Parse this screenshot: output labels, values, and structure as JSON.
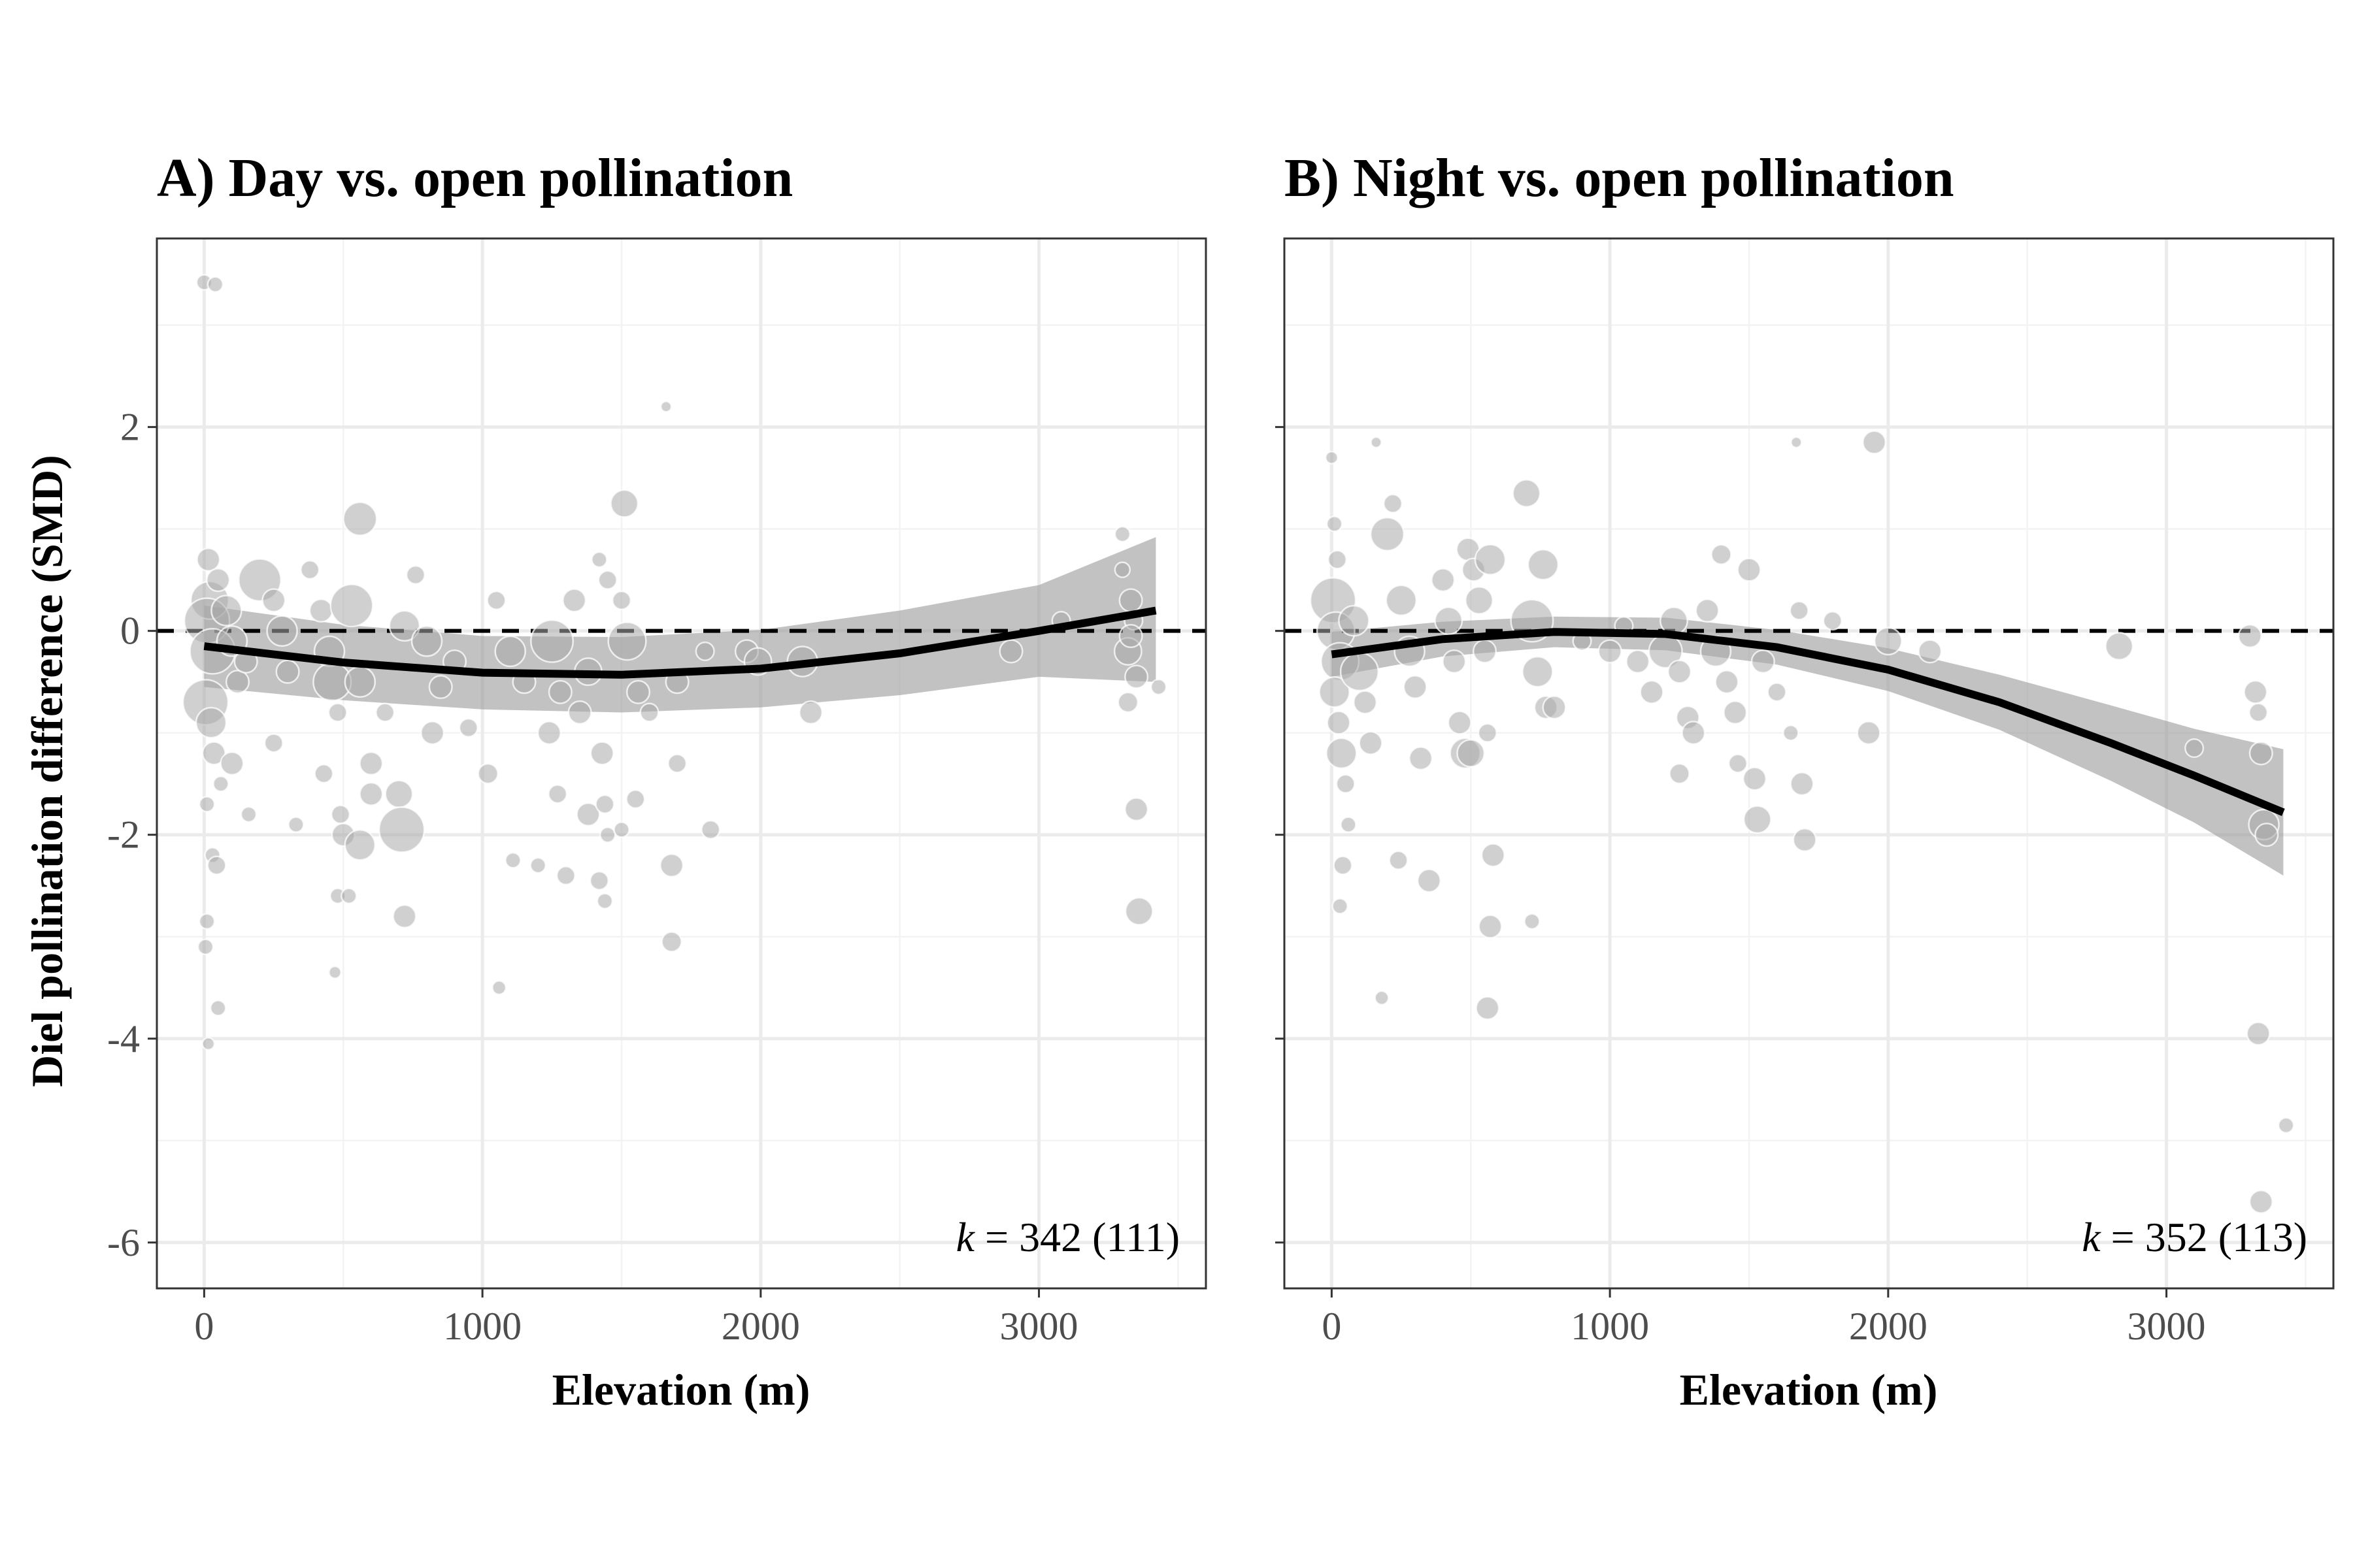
{
  "figure": {
    "y_axis_title": "Diel pollination difference (SMD)",
    "colors": {
      "point": "#aaaaaa",
      "ribbon": "#999999",
      "line": "#000000",
      "grid": "#ebebeb",
      "frame": "#333333"
    }
  },
  "chart_data": [
    {
      "type": "scatter",
      "title": "A) Day vs. open pollination",
      "xlabel": "Elevation (m)",
      "ylabel": "Diel pollination difference (SMD)",
      "xlim": [
        -170,
        3600
      ],
      "ylim": [
        -6.45,
        3.85
      ],
      "x_ticks": [
        0,
        1000,
        2000,
        3000
      ],
      "x_tick_labels": [
        "0",
        "1000",
        "2000",
        "3000"
      ],
      "y_ticks": [
        -6,
        -4,
        -2,
        0,
        2
      ],
      "y_tick_labels": [
        "-6",
        "-4",
        "-2",
        "0",
        "2"
      ],
      "grid": true,
      "reference_line_y": 0,
      "annotation": {
        "k_symbol": "k",
        "text": " = 342 (111)"
      },
      "fit": {
        "x": [
          0,
          500,
          1000,
          1500,
          2000,
          2500,
          3000,
          3420
        ],
        "y": [
          -0.15,
          -0.31,
          -0.41,
          -0.43,
          -0.37,
          -0.22,
          0.0,
          0.2
        ]
      },
      "ribbon": {
        "x": [
          0,
          500,
          1000,
          1500,
          2000,
          2500,
          3000,
          3420
        ],
        "lower": [
          -0.55,
          -0.68,
          -0.77,
          -0.8,
          -0.75,
          -0.63,
          -0.45,
          -0.5
        ],
        "upper": [
          0.25,
          0.06,
          -0.05,
          -0.06,
          0.01,
          0.2,
          0.45,
          0.92
        ]
      },
      "points": [
        [
          0,
          3.42,
          1.0
        ],
        [
          40,
          3.4,
          1.0
        ],
        [
          20,
          0.3,
          2.5
        ],
        [
          10,
          0.1,
          3.0
        ],
        [
          30,
          -0.2,
          3.0
        ],
        [
          5,
          -0.7,
          3.0
        ],
        [
          25,
          -0.9,
          2.0
        ],
        [
          15,
          0.7,
          1.5
        ],
        [
          50,
          0.5,
          1.5
        ],
        [
          35,
          -1.2,
          1.5
        ],
        [
          60,
          -1.5,
          1.0
        ],
        [
          10,
          -1.7,
          1.0
        ],
        [
          30,
          -2.2,
          1.0
        ],
        [
          45,
          -2.3,
          1.2
        ],
        [
          10,
          -2.85,
          1.0
        ],
        [
          5,
          -3.1,
          1.0
        ],
        [
          50,
          -3.7,
          1.0
        ],
        [
          15,
          -4.05,
          0.8
        ],
        [
          80,
          0.2,
          2.0
        ],
        [
          100,
          -0.1,
          2.0
        ],
        [
          120,
          -0.5,
          1.5
        ],
        [
          150,
          -0.3,
          1.5
        ],
        [
          100,
          -1.3,
          1.5
        ],
        [
          160,
          -1.8,
          1.0
        ],
        [
          200,
          0.5,
          2.8
        ],
        [
          250,
          0.3,
          1.5
        ],
        [
          280,
          0.0,
          2.0
        ],
        [
          300,
          -0.4,
          1.5
        ],
        [
          250,
          -1.1,
          1.2
        ],
        [
          330,
          -1.9,
          1.0
        ],
        [
          380,
          0.6,
          1.2
        ],
        [
          420,
          0.2,
          1.5
        ],
        [
          450,
          -0.2,
          2.0
        ],
        [
          460,
          -0.5,
          2.5
        ],
        [
          480,
          -0.8,
          1.2
        ],
        [
          430,
          -1.4,
          1.2
        ],
        [
          490,
          -1.8,
          1.2
        ],
        [
          500,
          -2.0,
          1.5
        ],
        [
          480,
          -2.6,
          1.0
        ],
        [
          470,
          -3.35,
          0.8
        ],
        [
          560,
          1.1,
          2.2
        ],
        [
          530,
          0.25,
          2.8
        ],
        [
          560,
          -0.5,
          2.0
        ],
        [
          600,
          -1.3,
          1.5
        ],
        [
          560,
          -2.1,
          2.0
        ],
        [
          520,
          -2.6,
          1.0
        ],
        [
          600,
          -1.6,
          1.5
        ],
        [
          650,
          -0.8,
          1.2
        ],
        [
          720,
          0.05,
          2.0
        ],
        [
          700,
          -1.6,
          1.8
        ],
        [
          710,
          -1.95,
          3.0
        ],
        [
          720,
          -2.8,
          1.5
        ],
        [
          760,
          0.55,
          1.2
        ],
        [
          800,
          -0.1,
          2.0
        ],
        [
          850,
          -0.55,
          1.5
        ],
        [
          820,
          -1.0,
          1.5
        ],
        [
          900,
          -0.3,
          1.5
        ],
        [
          950,
          -0.95,
          1.2
        ],
        [
          1050,
          0.3,
          1.2
        ],
        [
          1020,
          -1.4,
          1.3
        ],
        [
          1060,
          -3.5,
          0.9
        ],
        [
          1100,
          -0.2,
          2.0
        ],
        [
          1150,
          -0.5,
          1.5
        ],
        [
          1110,
          -2.25,
          1.0
        ],
        [
          1200,
          -2.3,
          1.0
        ],
        [
          1250,
          -0.1,
          2.8
        ],
        [
          1280,
          -0.6,
          1.5
        ],
        [
          1240,
          -1.0,
          1.5
        ],
        [
          1270,
          -1.6,
          1.2
        ],
        [
          1300,
          -2.4,
          1.2
        ],
        [
          1330,
          0.3,
          1.5
        ],
        [
          1380,
          -0.4,
          1.8
        ],
        [
          1350,
          -0.8,
          1.5
        ],
        [
          1380,
          -1.8,
          1.5
        ],
        [
          1420,
          0.7,
          1.0
        ],
        [
          1450,
          0.5,
          1.2
        ],
        [
          1430,
          -1.2,
          1.5
        ],
        [
          1440,
          -1.7,
          1.2
        ],
        [
          1450,
          -2.0,
          1.0
        ],
        [
          1420,
          -2.45,
          1.2
        ],
        [
          1440,
          -2.65,
          1.0
        ],
        [
          1500,
          0.3,
          1.2
        ],
        [
          1510,
          1.25,
          1.8
        ],
        [
          1520,
          -0.1,
          2.5
        ],
        [
          1560,
          -0.6,
          1.5
        ],
        [
          1600,
          -0.8,
          1.2
        ],
        [
          1550,
          -1.65,
          1.2
        ],
        [
          1500,
          -1.95,
          1.0
        ],
        [
          1660,
          2.2,
          0.7
        ],
        [
          1700,
          -0.5,
          1.5
        ],
        [
          1700,
          -1.3,
          1.2
        ],
        [
          1680,
          -2.3,
          1.5
        ],
        [
          1680,
          -3.05,
          1.3
        ],
        [
          1800,
          -0.2,
          1.2
        ],
        [
          1820,
          -1.95,
          1.2
        ],
        [
          1950,
          -0.2,
          1.5
        ],
        [
          1990,
          -0.3,
          1.8
        ],
        [
          2150,
          -0.3,
          2.0
        ],
        [
          2180,
          -0.8,
          1.5
        ],
        [
          2900,
          -0.2,
          1.5
        ],
        [
          3080,
          0.1,
          1.2
        ],
        [
          3300,
          0.95,
          1.0
        ],
        [
          3330,
          0.3,
          1.5
        ],
        [
          3340,
          0.1,
          1.2
        ],
        [
          3320,
          -0.2,
          1.8
        ],
        [
          3350,
          -0.45,
          1.5
        ],
        [
          3320,
          -0.7,
          1.3
        ],
        [
          3350,
          -1.75,
          1.5
        ],
        [
          3360,
          -2.75,
          1.8
        ],
        [
          3430,
          -0.55,
          1.0
        ],
        [
          3300,
          0.6,
          1.0
        ],
        [
          3330,
          -0.05,
          1.5
        ]
      ]
    },
    {
      "type": "scatter",
      "title": "B) Night vs. open pollination",
      "xlabel": "Elevation (m)",
      "ylabel": "",
      "xlim": [
        -170,
        3600
      ],
      "ylim": [
        -6.45,
        3.85
      ],
      "x_ticks": [
        0,
        1000,
        2000,
        3000
      ],
      "x_tick_labels": [
        "0",
        "1000",
        "2000",
        "3000"
      ],
      "y_ticks": [
        -6,
        -4,
        -2,
        0,
        2
      ],
      "y_tick_labels": [],
      "grid": true,
      "reference_line_y": 0,
      "annotation": {
        "k_symbol": "k",
        "text": " = 352 (113)"
      },
      "fit": {
        "x": [
          0,
          400,
          800,
          1200,
          1600,
          2000,
          2400,
          2800,
          3100,
          3420
        ],
        "y": [
          -0.23,
          -0.08,
          -0.01,
          -0.03,
          -0.16,
          -0.38,
          -0.7,
          -1.1,
          -1.42,
          -1.78
        ]
      },
      "ribbon": {
        "x": [
          0,
          400,
          800,
          1200,
          1600,
          2000,
          2400,
          2800,
          3100,
          3420
        ],
        "lower": [
          -0.45,
          -0.25,
          -0.16,
          -0.19,
          -0.33,
          -0.59,
          -0.97,
          -1.47,
          -1.88,
          -2.4
        ],
        "upper": [
          -0.01,
          0.09,
          0.14,
          0.13,
          0.01,
          -0.17,
          -0.43,
          -0.73,
          -0.96,
          -1.16
        ]
      },
      "points": [
        [
          0,
          1.7,
          0.8
        ],
        [
          10,
          1.05,
          1.0
        ],
        [
          20,
          0.7,
          1.2
        ],
        [
          5,
          0.3,
          3.0
        ],
        [
          15,
          0.0,
          2.5
        ],
        [
          30,
          -0.3,
          2.5
        ],
        [
          10,
          -0.6,
          2.0
        ],
        [
          25,
          -0.9,
          1.5
        ],
        [
          35,
          -1.2,
          2.0
        ],
        [
          50,
          -1.5,
          1.2
        ],
        [
          40,
          -2.3,
          1.2
        ],
        [
          30,
          -2.7,
          1.0
        ],
        [
          60,
          -1.9,
          1.0
        ],
        [
          80,
          0.1,
          2.0
        ],
        [
          100,
          -0.4,
          2.5
        ],
        [
          120,
          -0.7,
          1.5
        ],
        [
          140,
          -1.1,
          1.5
        ],
        [
          160,
          1.85,
          0.7
        ],
        [
          180,
          -3.6,
          0.9
        ],
        [
          200,
          0.95,
          2.2
        ],
        [
          220,
          1.25,
          1.2
        ],
        [
          250,
          0.3,
          2.0
        ],
        [
          280,
          -0.2,
          2.0
        ],
        [
          300,
          -0.55,
          1.5
        ],
        [
          320,
          -1.25,
          1.5
        ],
        [
          240,
          -2.25,
          1.2
        ],
        [
          350,
          -2.45,
          1.5
        ],
        [
          400,
          0.5,
          1.5
        ],
        [
          420,
          0.1,
          1.8
        ],
        [
          440,
          -0.3,
          1.5
        ],
        [
          460,
          -0.9,
          1.5
        ],
        [
          480,
          -1.2,
          2.0
        ],
        [
          500,
          -1.2,
          1.8
        ],
        [
          490,
          0.8,
          1.5
        ],
        [
          510,
          0.6,
          1.5
        ],
        [
          530,
          0.3,
          1.8
        ],
        [
          550,
          -0.2,
          1.5
        ],
        [
          560,
          -1.0,
          1.2
        ],
        [
          570,
          0.7,
          2.0
        ],
        [
          580,
          -2.2,
          1.5
        ],
        [
          570,
          -2.9,
          1.5
        ],
        [
          560,
          -3.7,
          1.5
        ],
        [
          700,
          1.35,
          1.8
        ],
        [
          720,
          0.1,
          2.8
        ],
        [
          760,
          0.65,
          2.0
        ],
        [
          740,
          -0.4,
          2.0
        ],
        [
          770,
          -0.75,
          1.5
        ],
        [
          800,
          -0.75,
          1.5
        ],
        [
          720,
          -2.85,
          1.0
        ],
        [
          900,
          -0.1,
          1.2
        ],
        [
          1000,
          -0.2,
          1.5
        ],
        [
          1050,
          0.05,
          1.2
        ],
        [
          1100,
          -0.3,
          1.5
        ],
        [
          1150,
          -0.6,
          1.5
        ],
        [
          1200,
          -0.2,
          2.2
        ],
        [
          1230,
          0.1,
          1.8
        ],
        [
          1250,
          -0.4,
          1.5
        ],
        [
          1280,
          -0.85,
          1.5
        ],
        [
          1300,
          -1.0,
          1.5
        ],
        [
          1250,
          -1.4,
          1.3
        ],
        [
          1350,
          0.2,
          1.5
        ],
        [
          1380,
          -0.2,
          2.0
        ],
        [
          1400,
          0.75,
          1.3
        ],
        [
          1420,
          -0.5,
          1.5
        ],
        [
          1450,
          -0.8,
          1.5
        ],
        [
          1460,
          -1.3,
          1.2
        ],
        [
          1500,
          0.6,
          1.5
        ],
        [
          1520,
          -1.45,
          1.5
        ],
        [
          1530,
          -1.85,
          1.8
        ],
        [
          1550,
          -0.3,
          1.5
        ],
        [
          1600,
          -0.6,
          1.2
        ],
        [
          1650,
          -1.0,
          1.0
        ],
        [
          1680,
          0.2,
          1.2
        ],
        [
          1690,
          -1.5,
          1.5
        ],
        [
          1700,
          -2.05,
          1.5
        ],
        [
          1670,
          1.85,
          0.7
        ],
        [
          1800,
          0.1,
          1.2
        ],
        [
          1930,
          -1.0,
          1.5
        ],
        [
          1950,
          1.85,
          1.5
        ],
        [
          2000,
          -0.1,
          1.8
        ],
        [
          2150,
          -0.2,
          1.5
        ],
        [
          2830,
          -0.15,
          1.8
        ],
        [
          3100,
          -1.15,
          1.2
        ],
        [
          3300,
          -0.05,
          1.5
        ],
        [
          3320,
          -0.6,
          1.5
        ],
        [
          3330,
          -0.8,
          1.2
        ],
        [
          3340,
          -1.2,
          1.5
        ],
        [
          3350,
          -1.9,
          2.0
        ],
        [
          3360,
          -2.0,
          1.5
        ],
        [
          3330,
          -3.95,
          1.5
        ],
        [
          3340,
          -5.6,
          1.5
        ],
        [
          3430,
          -4.85,
          1.0
        ]
      ]
    }
  ]
}
